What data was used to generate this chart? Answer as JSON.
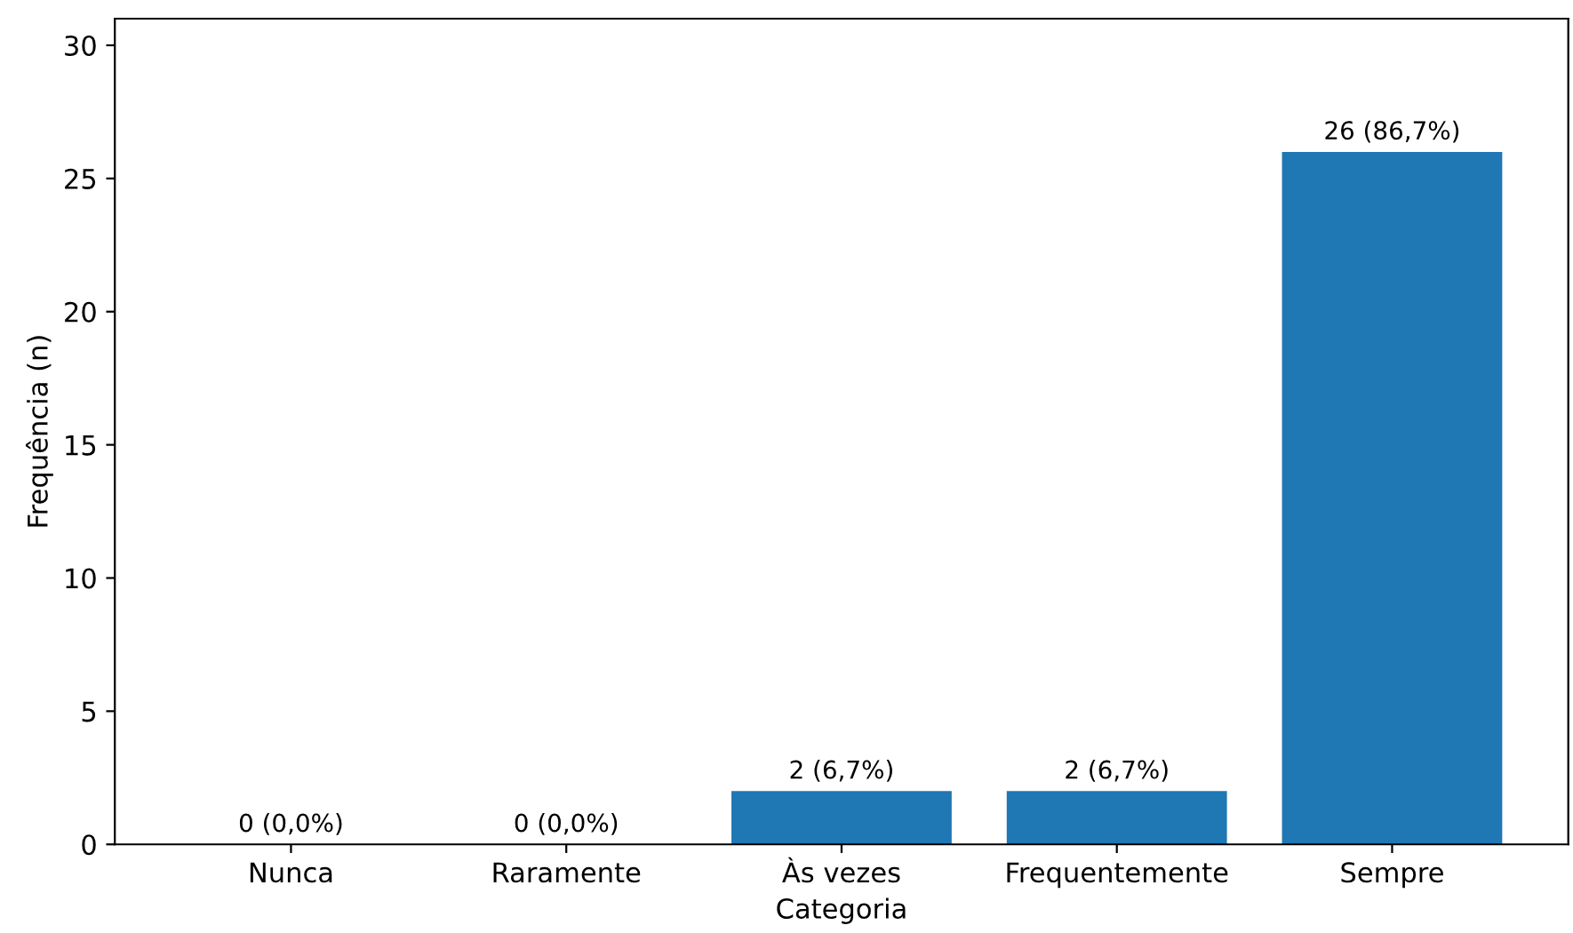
{
  "chart_data": {
    "type": "bar",
    "xlabel": "Categoria",
    "ylabel": "Frequência (n)",
    "categories": [
      "Nunca",
      "Raramente",
      "Às vezes",
      "Frequentemente",
      "Sempre"
    ],
    "values": [
      0,
      0,
      2,
      2,
      26
    ],
    "value_labels": [
      "0 (0,0%)",
      "0 (0,0%)",
      "2 (6,7%)",
      "2 (6,7%)",
      "26 (86,7%)"
    ],
    "color": "#1f77b4",
    "ylim": [
      0,
      31
    ],
    "yticks": [
      0,
      5,
      10,
      15,
      20,
      25,
      30
    ],
    "grid": false
  }
}
